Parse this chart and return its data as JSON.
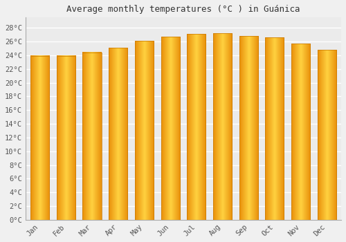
{
  "title": "Average monthly temperatures (°C ) in Guánica",
  "months": [
    "Jan",
    "Feb",
    "Mar",
    "Apr",
    "May",
    "Jun",
    "Jul",
    "Aug",
    "Sep",
    "Oct",
    "Nov",
    "Dec"
  ],
  "values": [
    23.9,
    23.9,
    24.4,
    25.1,
    26.1,
    26.7,
    27.1,
    27.2,
    26.8,
    26.6,
    25.7,
    24.8
  ],
  "bar_color_center": "#FFD040",
  "bar_color_edge": "#E8900A",
  "yticks": [
    0,
    2,
    4,
    6,
    8,
    10,
    12,
    14,
    16,
    18,
    20,
    22,
    24,
    26,
    28
  ],
  "ylim": [
    0,
    29.5
  ],
  "background_color": "#F0F0F0",
  "plot_bg_color": "#EBEBEB",
  "grid_color": "#FFFFFF",
  "title_fontsize": 9,
  "tick_fontsize": 7.5
}
